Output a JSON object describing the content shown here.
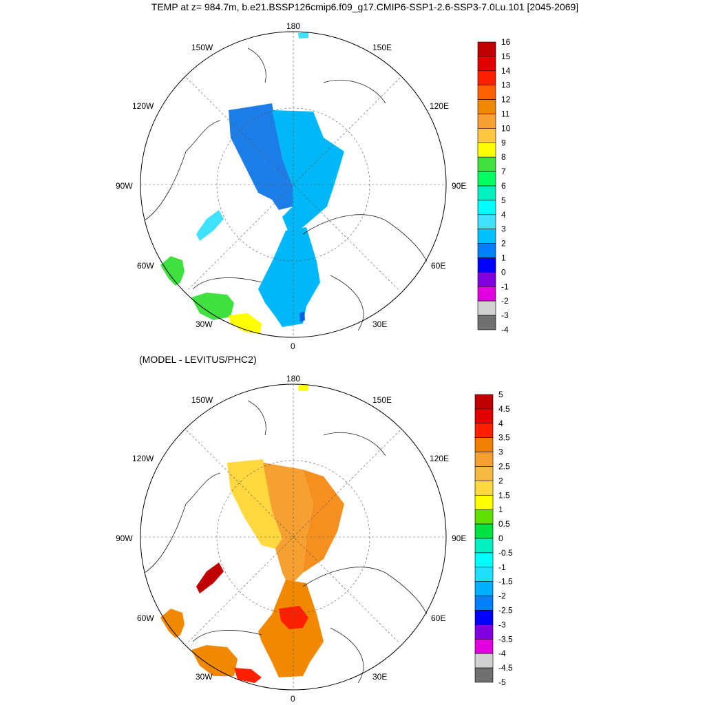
{
  "title": "TEMP at z= 984.7m, b.e21.BSSP126cmip6.f09_g17.CMIP6-SSP1-2.6-SSP3-7.0Lu.101 [2045-2069]",
  "subtitle": "(MODEL - LEVITUS/PHC2)",
  "lon_labels": [
    "180",
    "150E",
    "120E",
    "90E",
    "60E",
    "30E",
    "0",
    "30W",
    "60W",
    "90W",
    "120W",
    "150W"
  ],
  "top_colorbar": {
    "labels": [
      "16",
      "15",
      "14",
      "13",
      "12",
      "11",
      "10",
      "9",
      "8",
      "7",
      "6",
      "5",
      "4",
      "3",
      "2",
      "1",
      "0",
      "-1",
      "-2",
      "-3",
      "-4"
    ],
    "colors": [
      "#c00000",
      "#e00000",
      "#ff2000",
      "#ff6000",
      "#f08800",
      "#f5a030",
      "#ffc840",
      "#ffff00",
      "#40e040",
      "#00ff60",
      "#00f0c0",
      "#00ffff",
      "#40e0ff",
      "#00c0ff",
      "#0080ff",
      "#0000ff",
      "#8000e0",
      "#e000e0",
      "#d0d0d0",
      "#707070"
    ]
  },
  "bottom_colorbar": {
    "labels": [
      "5",
      "4.5",
      "4",
      "3.5",
      "3",
      "2.5",
      "2",
      "1.5",
      "1",
      "0.5",
      "0",
      "-0.5",
      "-1",
      "-1.5",
      "-2",
      "-2.5",
      "-3",
      "-3.5",
      "-4",
      "-4.5",
      "-5"
    ],
    "colors": [
      "#c00000",
      "#e00000",
      "#ff2000",
      "#f08000",
      "#f5a030",
      "#f5b840",
      "#ffd840",
      "#ffff00",
      "#60e000",
      "#00e040",
      "#00f0c0",
      "#00ffff",
      "#20e0ff",
      "#00b0ff",
      "#0080ff",
      "#0000ff",
      "#8000e0",
      "#e000e0",
      "#d0d0d0",
      "#707070"
    ]
  }
}
